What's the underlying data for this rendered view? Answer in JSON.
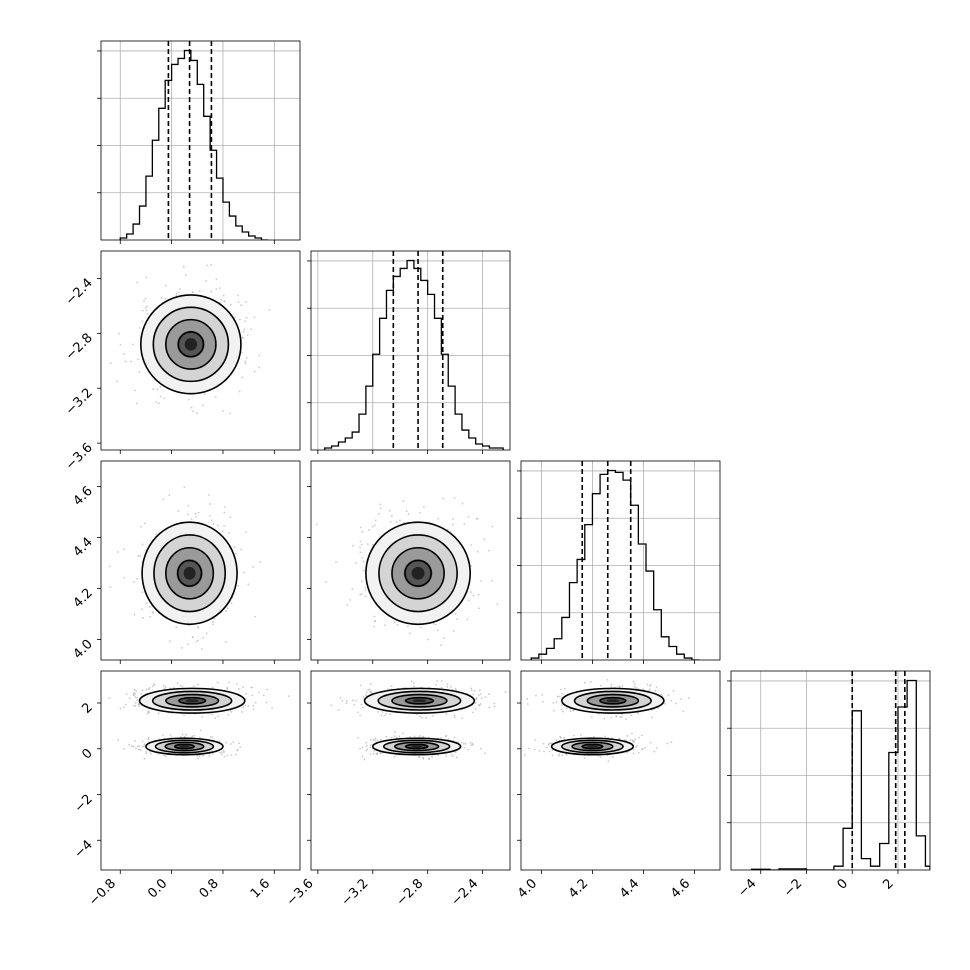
{
  "chart_data": {
    "type": "corner",
    "parameters": [
      {
        "index": 0,
        "range": [
          -1.1,
          2.0
        ],
        "ticks": [
          -0.8,
          0.0,
          0.8,
          1.6
        ],
        "tick_labels": [
          "−0.8",
          "0.0",
          "0.8",
          "1.6"
        ],
        "quantiles": [
          -0.05,
          0.28,
          0.62
        ]
      },
      {
        "index": 1,
        "range": [
          -3.65,
          -2.2
        ],
        "ticks": [
          -3.6,
          -3.2,
          -2.8,
          -2.4
        ],
        "tick_labels": [
          "−3.6",
          "−3.2",
          "−2.8",
          "−2.4"
        ],
        "quantiles": [
          -3.05,
          -2.87,
          -2.69
        ]
      },
      {
        "index": 2,
        "range": [
          3.92,
          4.7
        ],
        "ticks": [
          4.0,
          4.2,
          4.4,
          4.6
        ],
        "tick_labels": [
          "4.0",
          "4.2",
          "4.4",
          "4.6"
        ],
        "quantiles": [
          4.16,
          4.26,
          4.35
        ]
      },
      {
        "index": 3,
        "range": [
          -5.3,
          3.4
        ],
        "ticks": [
          -4,
          -2,
          0,
          2
        ],
        "tick_labels": [
          "−4",
          "−2",
          "0",
          "2"
        ],
        "quantiles": [
          0.0,
          1.9,
          2.3
        ]
      }
    ],
    "histograms": [
      {
        "param": 0,
        "edges": [
          -0.8,
          -0.7,
          -0.6,
          -0.5,
          -0.4,
          -0.3,
          -0.2,
          -0.1,
          0.0,
          0.1,
          0.2,
          0.3,
          0.4,
          0.5,
          0.6,
          0.7,
          0.8,
          0.9,
          1.0,
          1.1,
          1.2,
          1.3,
          1.4,
          1.5
        ],
        "counts": [
          1,
          3,
          8,
          17,
          32,
          50,
          66,
          80,
          88,
          91,
          95,
          90,
          78,
          62,
          45,
          31,
          19,
          12,
          7,
          4,
          2,
          1,
          0
        ]
      },
      {
        "param": 1,
        "edges": [
          -3.55,
          -3.5,
          -3.45,
          -3.4,
          -3.35,
          -3.3,
          -3.25,
          -3.2,
          -3.15,
          -3.1,
          -3.05,
          -3.0,
          -2.95,
          -2.9,
          -2.85,
          -2.8,
          -2.75,
          -2.7,
          -2.65,
          -2.6,
          -2.55,
          -2.5,
          -2.45,
          -2.4,
          -2.35,
          -2.3,
          -2.25
        ],
        "counts": [
          1,
          2,
          4,
          6,
          9,
          18,
          32,
          48,
          66,
          80,
          87,
          91,
          95,
          91,
          85,
          78,
          66,
          48,
          32,
          18,
          10,
          6,
          3,
          2,
          1,
          1
        ]
      },
      {
        "param": 2,
        "edges": [
          3.96,
          3.99,
          4.02,
          4.05,
          4.08,
          4.11,
          4.14,
          4.17,
          4.2,
          4.23,
          4.26,
          4.29,
          4.32,
          4.35,
          4.38,
          4.41,
          4.44,
          4.47,
          4.5,
          4.53,
          4.56,
          4.59,
          4.62
        ],
        "counts": [
          1,
          3,
          6,
          11,
          22,
          40,
          52,
          70,
          86,
          96,
          98,
          97,
          93,
          80,
          60,
          46,
          26,
          12,
          7,
          3,
          1,
          0
        ]
      },
      {
        "param": 3,
        "edges": [
          -4.4,
          -4.0,
          -3.6,
          -3.2,
          -2.8,
          -2.4,
          -2.0,
          -1.6,
          -1.2,
          -0.8,
          -0.4,
          0.0,
          0.4,
          0.8,
          1.2,
          1.6,
          2.0,
          2.4,
          2.8,
          3.2,
          3.4
        ],
        "counts": [
          0.4,
          0.4,
          0,
          0.6,
          0.6,
          0.6,
          0,
          0,
          0,
          2,
          22,
          84,
          6,
          2,
          14,
          62,
          86,
          100,
          18,
          2
        ]
      }
    ],
    "contours_2d": [
      {
        "row": 1,
        "col": 0,
        "blobs": [
          {
            "cx": 0.3,
            "cy": -2.88,
            "sx": 0.39,
            "sy": 0.18
          }
        ]
      },
      {
        "row": 2,
        "col": 0,
        "blobs": [
          {
            "cx": 0.28,
            "cy": 4.26,
            "sx": 0.37,
            "sy": 0.1
          }
        ]
      },
      {
        "row": 2,
        "col": 1,
        "blobs": [
          {
            "cx": -2.87,
            "cy": 4.26,
            "sx": 0.19,
            "sy": 0.1
          }
        ]
      },
      {
        "row": 3,
        "col": 0,
        "blobs": [
          {
            "cx": 0.32,
            "cy": 2.1,
            "sx": 0.41,
            "sy": 0.27
          },
          {
            "cx": 0.2,
            "cy": 0.1,
            "sx": 0.3,
            "sy": 0.18
          }
        ]
      },
      {
        "row": 3,
        "col": 1,
        "blobs": [
          {
            "cx": -2.86,
            "cy": 2.1,
            "sx": 0.2,
            "sy": 0.27
          },
          {
            "cx": -2.88,
            "cy": 0.1,
            "sx": 0.16,
            "sy": 0.18
          }
        ]
      },
      {
        "row": 3,
        "col": 2,
        "blobs": [
          {
            "cx": 4.28,
            "cy": 2.1,
            "sx": 0.1,
            "sy": 0.27
          },
          {
            "cx": 4.2,
            "cy": 0.1,
            "sx": 0.08,
            "sy": 0.18
          }
        ]
      }
    ],
    "contour_levels_sigma": [
      0.5,
      1.0,
      1.5,
      2.0
    ],
    "grid": true
  }
}
